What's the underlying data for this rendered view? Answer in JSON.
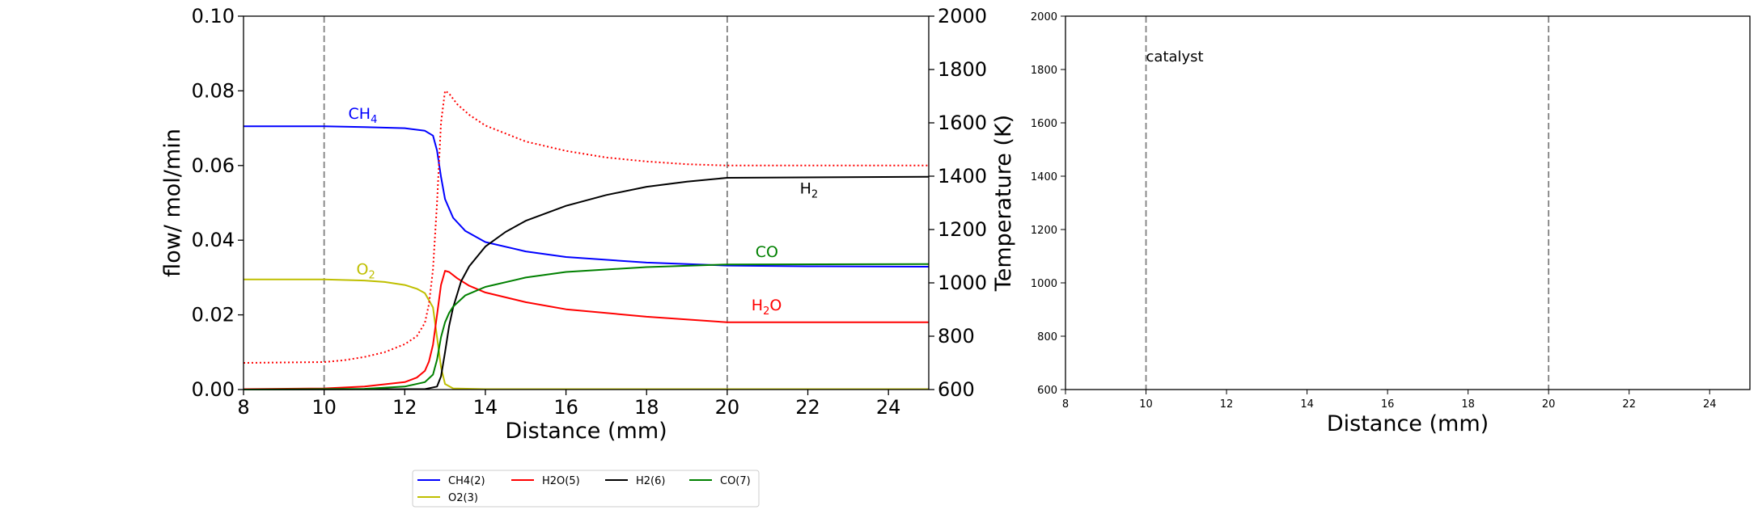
{
  "colors": {
    "CH4": "#0000ff",
    "H2O": "#ff0000",
    "H2": "#000000",
    "CO": "#008000",
    "O2": "#bfbf00",
    "temperature": "#ff0000",
    "marker_line": "#808080"
  },
  "chart_data": [
    {
      "type": "line",
      "title": "",
      "xlabel": "Distance (mm)",
      "ylabel": "flow/ mol/min",
      "y2label": "Temperature (K)",
      "xlim": [
        8,
        25
      ],
      "ylim": [
        0,
        0.1
      ],
      "y2lim": [
        600,
        2000
      ],
      "xticks": [
        "8",
        "10",
        "12",
        "14",
        "16",
        "18",
        "20",
        "22",
        "24"
      ],
      "yticks": [
        "0.00",
        "0.02",
        "0.04",
        "0.06",
        "0.08",
        "0.10"
      ],
      "y2ticks": [
        "600",
        "800",
        "1000",
        "1200",
        "1400",
        "1600",
        "1800",
        "2000"
      ],
      "vlines": [
        10,
        20
      ],
      "grid": false,
      "legend_position": "below",
      "series": [
        {
          "name": "CH4(2)",
          "color_key": "CH4",
          "axis": "left",
          "x": [
            8,
            10,
            11,
            12,
            12.5,
            12.7,
            12.8,
            12.9,
            13.0,
            13.2,
            13.5,
            14,
            15,
            16,
            18,
            20,
            22,
            25
          ],
          "y": [
            0.0705,
            0.0705,
            0.0703,
            0.07,
            0.0693,
            0.068,
            0.064,
            0.057,
            0.051,
            0.046,
            0.0425,
            0.0395,
            0.037,
            0.0355,
            0.034,
            0.0332,
            0.033,
            0.0329
          ]
        },
        {
          "name": "O2(3)",
          "color_key": "O2",
          "axis": "left",
          "x": [
            8,
            10,
            11,
            11.5,
            12,
            12.3,
            12.5,
            12.7,
            12.8,
            12.9,
            13.0,
            13.2,
            14,
            25
          ],
          "y": [
            0.0295,
            0.0295,
            0.0292,
            0.0288,
            0.028,
            0.027,
            0.0258,
            0.022,
            0.014,
            0.006,
            0.0015,
            0.0003,
            0.0001,
            0.0001
          ]
        },
        {
          "name": "H2O(5)",
          "color_key": "H2O",
          "axis": "left",
          "x": [
            8,
            10,
            11,
            12,
            12.3,
            12.5,
            12.6,
            12.7,
            12.8,
            12.9,
            13.0,
            13.1,
            13.3,
            13.6,
            14,
            15,
            16,
            18,
            20,
            25
          ],
          "y": [
            0.0001,
            0.0003,
            0.0008,
            0.002,
            0.0032,
            0.005,
            0.0075,
            0.012,
            0.02,
            0.028,
            0.0318,
            0.0315,
            0.0298,
            0.0278,
            0.026,
            0.0234,
            0.0215,
            0.0195,
            0.018,
            0.018
          ]
        },
        {
          "name": "H2(6)",
          "color_key": "H2",
          "axis": "left",
          "x": [
            8,
            12.5,
            12.8,
            12.9,
            13.0,
            13.1,
            13.2,
            13.4,
            13.6,
            14,
            14.5,
            15,
            16,
            17,
            18,
            19,
            20,
            25
          ],
          "y": [
            0,
            0.0001,
            0.0008,
            0.0035,
            0.01,
            0.017,
            0.022,
            0.029,
            0.033,
            0.0383,
            0.0422,
            0.0452,
            0.0492,
            0.0521,
            0.0543,
            0.0557,
            0.0567,
            0.057
          ]
        },
        {
          "name": "CO(7)",
          "color_key": "CO",
          "axis": "left",
          "x": [
            8,
            11,
            12,
            12.5,
            12.7,
            12.8,
            12.9,
            13.0,
            13.1,
            13.2,
            13.5,
            14,
            15,
            16,
            18,
            20,
            25
          ],
          "y": [
            0,
            0.0002,
            0.0008,
            0.002,
            0.004,
            0.008,
            0.014,
            0.018,
            0.0205,
            0.0222,
            0.0252,
            0.0275,
            0.03,
            0.0315,
            0.0328,
            0.0335,
            0.0336
          ]
        },
        {
          "name": "Temperature",
          "color_key": "temperature",
          "axis": "right",
          "style": "dotted",
          "x": [
            8,
            10,
            10.5,
            11,
            11.5,
            12,
            12.3,
            12.5,
            12.6,
            12.7,
            12.8,
            12.9,
            13.0,
            13.1,
            13.3,
            13.6,
            14,
            14.5,
            15,
            16,
            17,
            18,
            19,
            20,
            25
          ],
          "y": [
            700,
            703,
            710,
            722,
            740,
            770,
            800,
            850,
            920,
            1050,
            1300,
            1600,
            1720,
            1710,
            1670,
            1630,
            1590,
            1560,
            1530,
            1495,
            1470,
            1455,
            1445,
            1440,
            1440
          ]
        }
      ],
      "annotations": [
        {
          "label": "CH",
          "sub": "4",
          "color_key": "CH4",
          "x": 10.6,
          "y": 0.0725
        },
        {
          "label": "O",
          "sub": "2",
          "color_key": "O2",
          "x": 10.8,
          "y": 0.0308
        },
        {
          "label": "H",
          "sub": "2",
          "color_key": "H2",
          "x": 21.8,
          "y": 0.0525
        },
        {
          "label": "CO",
          "sub": "",
          "color_key": "CO",
          "x": 20.7,
          "y": 0.0355
        },
        {
          "label": "H",
          "sub": "2",
          "post": "O",
          "color_key": "H2O",
          "x": 20.6,
          "y": 0.0212
        }
      ],
      "legend": [
        {
          "label": "CH4(2)",
          "color_key": "CH4"
        },
        {
          "label": "H2O(5)",
          "color_key": "H2O"
        },
        {
          "label": "H2(6)",
          "color_key": "H2"
        },
        {
          "label": "CO(7)",
          "color_key": "CO"
        },
        {
          "label": "O2(3)",
          "color_key": "O2"
        }
      ]
    },
    {
      "type": "line",
      "title": "",
      "xlabel": "Distance (mm)",
      "ylabel": "",
      "xlim": [
        8,
        25
      ],
      "ylim": [
        600,
        2000
      ],
      "xticks": [
        "8",
        "10",
        "12",
        "14",
        "16",
        "18",
        "20",
        "22",
        "24"
      ],
      "yticks": [
        "600",
        "800",
        "1000",
        "1200",
        "1400",
        "1600",
        "1800",
        "2000"
      ],
      "vlines": [
        10,
        20
      ],
      "grid": false,
      "series": [],
      "annotations": [
        {
          "label": "catalyst",
          "x": 10,
          "y": 1830
        }
      ]
    }
  ]
}
